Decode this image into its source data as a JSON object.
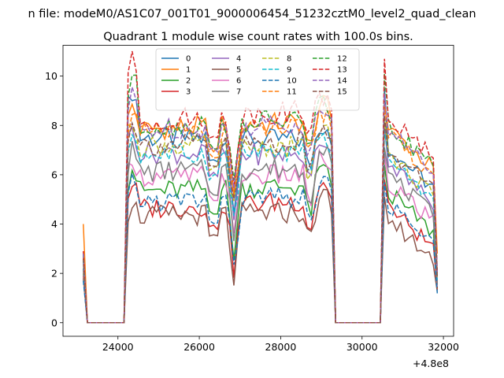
{
  "suptitle": "n file: modeM0/AS1C07_001T01_9000006454_51232cztM0_level2_quad_clean",
  "colors": [
    "#1f77b4",
    "#ff7f0e",
    "#2ca02c",
    "#d62728",
    "#9467bd",
    "#8c564b",
    "#e377c2",
    "#7f7f7f",
    "#bcbd22",
    "#17becf",
    "#1f77b4",
    "#ff7f0e",
    "#2ca02c",
    "#d62728",
    "#9467bd",
    "#8c564b"
  ],
  "chart_data": {
    "type": "line",
    "title": "Quadrant 1 module wise count rates with 100.0s bins.",
    "xlabel": "",
    "ylabel": "",
    "offset_text": "+4.8e8",
    "x_offset": 480000000,
    "xlim": [
      22650,
      32250
    ],
    "ylim": [
      -0.55,
      11.25
    ],
    "xticks": [
      24000,
      26000,
      28000,
      30000,
      32000
    ],
    "xtick_labels": [
      "24000",
      "26000",
      "28000",
      "30000",
      "32000"
    ],
    "yticks": [
      0,
      2,
      4,
      6,
      8,
      10
    ],
    "ytick_labels": [
      "0",
      "2",
      "4",
      "6",
      "8",
      "10"
    ],
    "grid": false,
    "legend": {
      "placement": "top-center",
      "columns": 4
    },
    "segments": [
      {
        "x": [
          23150,
          23250,
          23350,
          23450,
          23550,
          23650,
          23750,
          23850,
          23950,
          24050,
          24150
        ],
        "role": "start"
      },
      {
        "x": [
          24150,
          24250,
          24350,
          24450,
          24550,
          24650,
          24750,
          24850,
          24950,
          25050,
          25150,
          25250,
          25350,
          25450,
          25550,
          25650,
          25750,
          25850,
          25950,
          26050,
          26150,
          26250,
          26350,
          26450,
          26550,
          26650,
          26750,
          26850,
          26950,
          27050,
          27150,
          27250,
          27350,
          27450,
          27550,
          27650,
          27750,
          27850,
          27950,
          28050,
          28150,
          28250,
          28350,
          28450,
          28550,
          28650,
          28750,
          28850,
          28950,
          29050,
          29150,
          29250,
          29350
        ],
        "role": "main"
      },
      {
        "x": [
          29350,
          29450,
          29550,
          29650,
          29750,
          29850,
          29950,
          30050,
          30150,
          30250,
          30350,
          30450
        ],
        "role": "gap"
      },
      {
        "x": [
          30450,
          30550,
          30650,
          30750,
          30850,
          30950,
          31050,
          31150,
          31250,
          31350,
          31450,
          31550,
          31650,
          31750,
          31850
        ],
        "role": "end"
      }
    ],
    "series": [
      {
        "name": "0",
        "style": "solid",
        "level1": 7.5,
        "level2": 7.4,
        "spike": 9.4,
        "start": 2.2
      },
      {
        "name": "1",
        "style": "solid",
        "level1": 7.8,
        "level2": 8.2,
        "spike": 8.8,
        "start": 4.0
      },
      {
        "name": "2",
        "style": "solid",
        "level1": 5.3,
        "level2": 5.6,
        "spike": 6.3,
        "start": 2.0
      },
      {
        "name": "3",
        "style": "solid",
        "level1": 4.6,
        "level2": 5.0,
        "spike": 5.7,
        "start": 1.9
      },
      {
        "name": "4",
        "style": "solid",
        "level1": 6.9,
        "level2": 6.8,
        "spike": 7.9,
        "start": 2.4
      },
      {
        "name": "5",
        "style": "solid",
        "level1": 4.3,
        "level2": 4.5,
        "spike": 5.0,
        "start": 1.8
      },
      {
        "name": "6",
        "style": "solid",
        "level1": 5.9,
        "level2": 6.0,
        "spike": 6.8,
        "start": 2.1
      },
      {
        "name": "7",
        "style": "solid",
        "level1": 6.1,
        "level2": 6.3,
        "spike": 7.0,
        "start": 2.2
      },
      {
        "name": "8",
        "style": "dashed",
        "level1": 7.2,
        "level2": 7.1,
        "spike": 8.2,
        "start": 2.6
      },
      {
        "name": "9",
        "style": "dashed",
        "level1": 6.8,
        "level2": 6.9,
        "spike": 7.7,
        "start": 2.5
      },
      {
        "name": "10",
        "style": "dashed",
        "level1": 4.9,
        "level2": 5.1,
        "spike": 5.6,
        "start": 1.7
      },
      {
        "name": "11",
        "style": "dashed",
        "level1": 7.6,
        "level2": 7.9,
        "spike": 8.7,
        "start": 2.7
      },
      {
        "name": "12",
        "style": "dashed",
        "level1": 7.9,
        "level2": 8.3,
        "spike": 10.0,
        "start": 2.8
      },
      {
        "name": "13",
        "style": "dashed",
        "level1": 8.1,
        "level2": 8.7,
        "spike": 10.6,
        "start": 2.9
      },
      {
        "name": "14",
        "style": "dashed",
        "level1": 7.8,
        "level2": 8.1,
        "spike": 9.2,
        "start": 2.8
      },
      {
        "name": "15",
        "style": "dashed",
        "level1": 7.2,
        "level2": 7.3,
        "spike": 8.3,
        "start": 2.6
      }
    ]
  }
}
